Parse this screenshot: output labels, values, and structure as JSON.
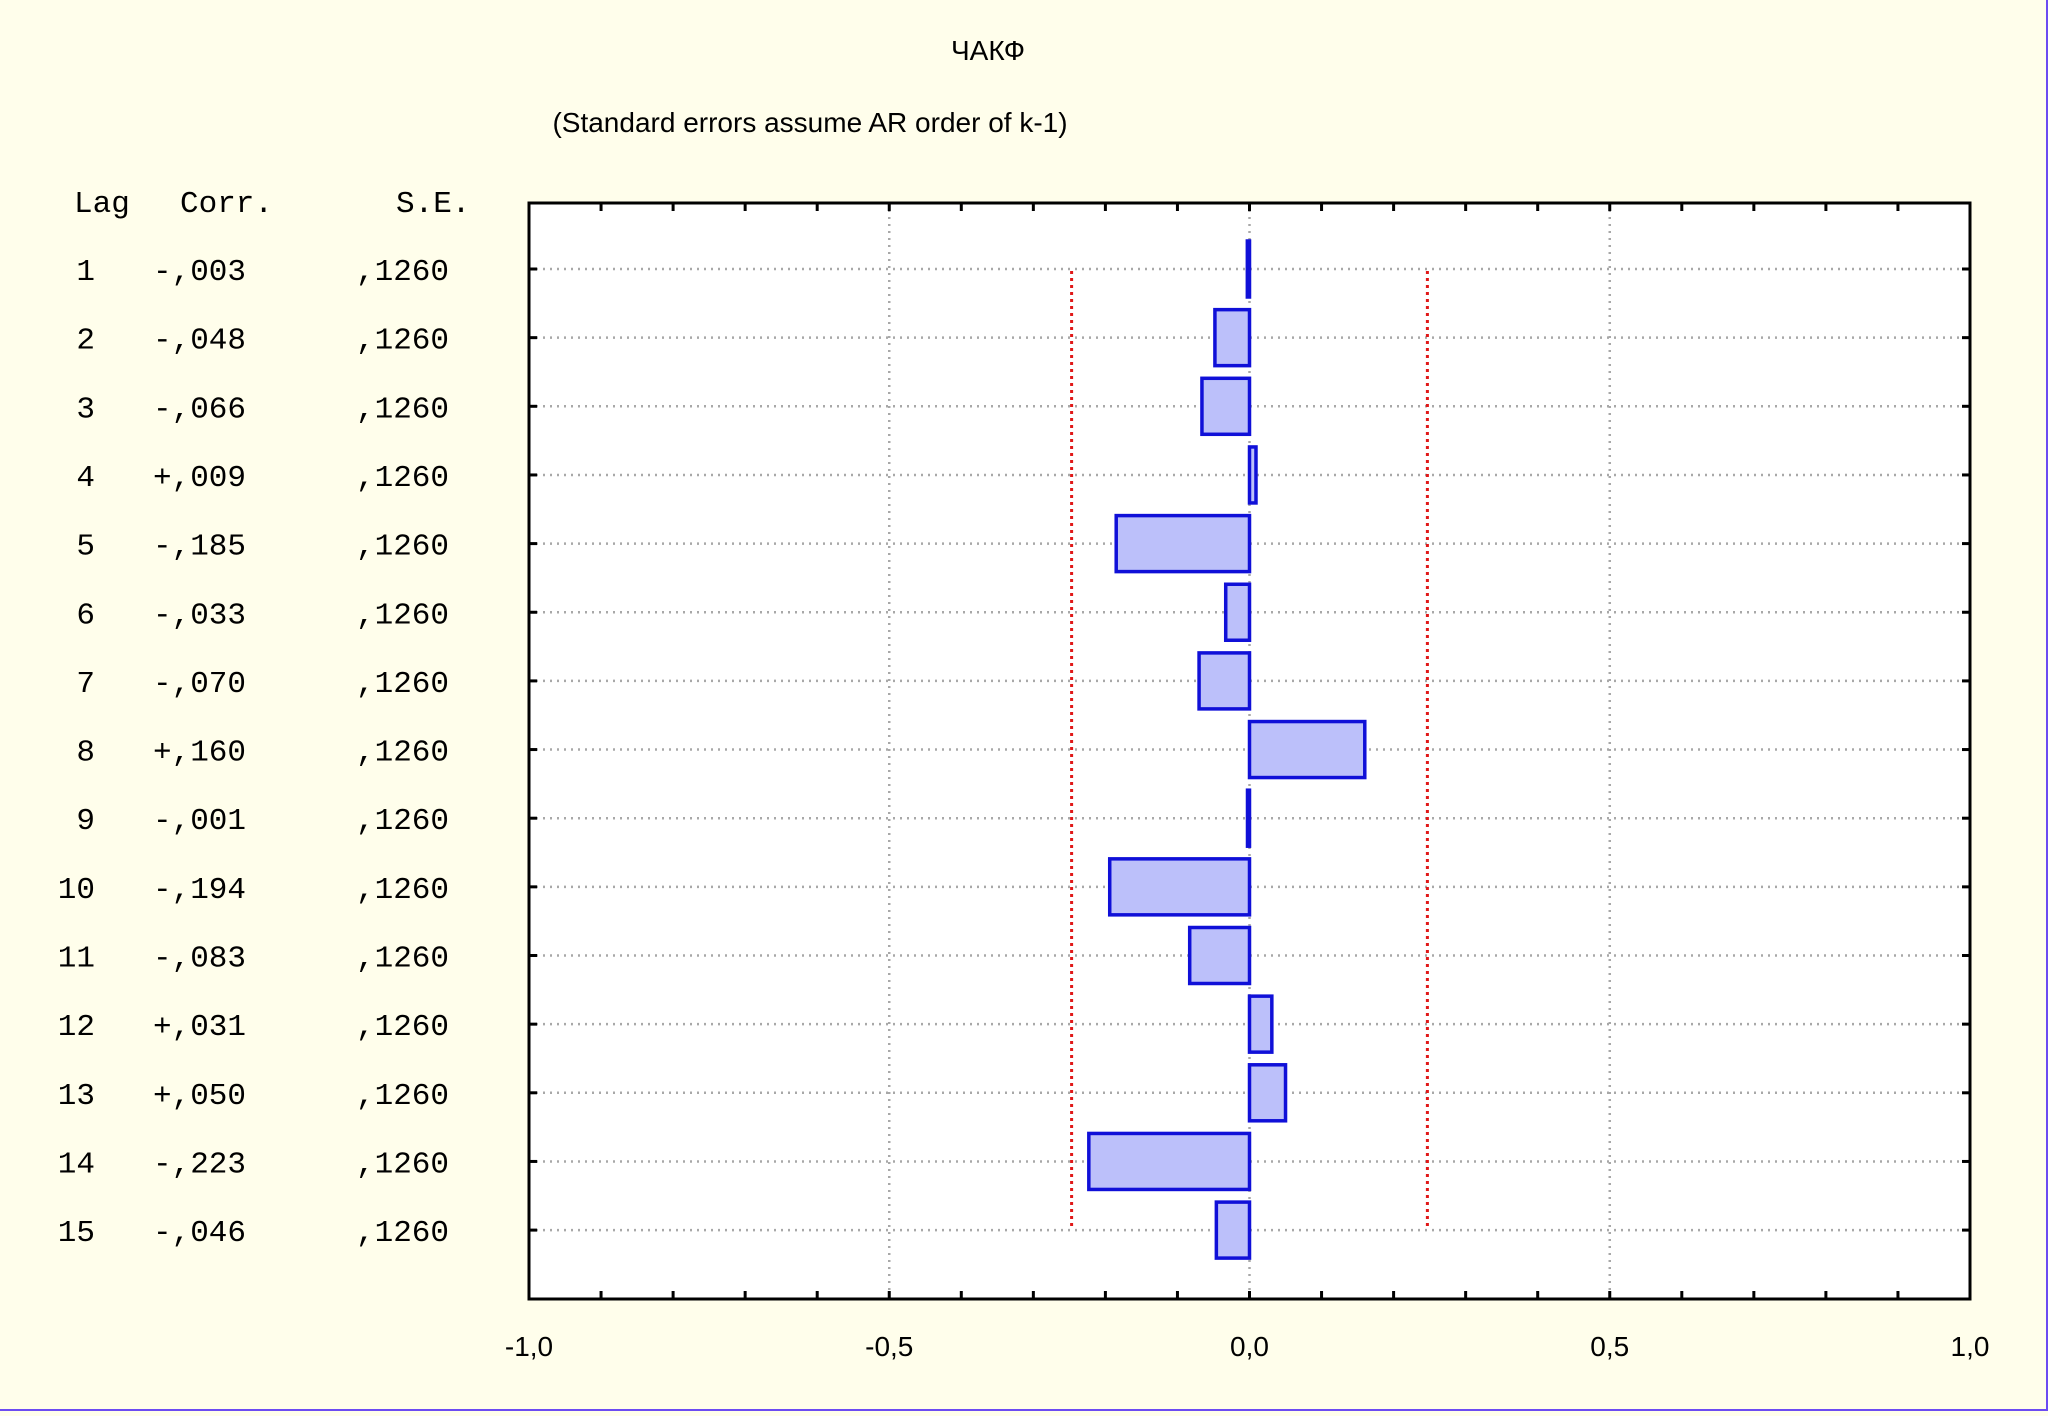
{
  "title": "ЧАКФ",
  "subtitle": "(Standard errors assume AR order of k-1)",
  "table": {
    "headers": [
      "Lag",
      "Corr.",
      "S.E."
    ],
    "rows": [
      [
        "1",
        "-,003",
        ",1260"
      ],
      [
        "2",
        "-,048",
        ",1260"
      ],
      [
        "3",
        "-,066",
        ",1260"
      ],
      [
        "4",
        "+,009",
        ",1260"
      ],
      [
        "5",
        "-,185",
        ",1260"
      ],
      [
        "6",
        "-,033",
        ",1260"
      ],
      [
        "7",
        "-,070",
        ",1260"
      ],
      [
        "8",
        "+,160",
        ",1260"
      ],
      [
        "9",
        "-,001",
        ",1260"
      ],
      [
        "10",
        "-,194",
        ",1260"
      ],
      [
        "11",
        "-,083",
        ",1260"
      ],
      [
        "12",
        "+,031",
        ",1260"
      ],
      [
        "13",
        "+,050",
        ",1260"
      ],
      [
        "14",
        "-,223",
        ",1260"
      ],
      [
        "15",
        "-,046",
        ",1260"
      ]
    ]
  },
  "chart_data": {
    "type": "bar",
    "orientation": "horizontal",
    "title": "ЧАКФ",
    "subtitle": "(Standard errors assume AR order of k-1)",
    "categories": [
      "1",
      "2",
      "3",
      "4",
      "5",
      "6",
      "7",
      "8",
      "9",
      "10",
      "11",
      "12",
      "13",
      "14",
      "15"
    ],
    "values": [
      -0.003,
      -0.048,
      -0.066,
      0.009,
      -0.185,
      -0.033,
      -0.07,
      0.16,
      -0.001,
      -0.194,
      -0.083,
      0.031,
      0.05,
      -0.223,
      -0.046
    ],
    "standard_errors": [
      0.126,
      0.126,
      0.126,
      0.126,
      0.126,
      0.126,
      0.126,
      0.126,
      0.126,
      0.126,
      0.126,
      0.126,
      0.126,
      0.126,
      0.126
    ],
    "xlim": [
      -1.0,
      1.0
    ],
    "xticks": [
      -1.0,
      -0.5,
      0.0,
      0.5,
      1.0
    ],
    "xtick_labels": [
      "-1,0",
      "-0,5",
      "0,0",
      "0,5",
      "1,0"
    ],
    "confidence_limits": [
      -0.2469,
      0.2469
    ],
    "grid": true,
    "legend": "none",
    "colors": {
      "bar_fill": "#BCC0FA",
      "bar_stroke": "#1010D8",
      "confidence_line": "#E01818",
      "grid": "#A8A8A8",
      "axis": "#000000",
      "background": "#FFFEEB",
      "plot_background": "#FFFFFF"
    }
  }
}
